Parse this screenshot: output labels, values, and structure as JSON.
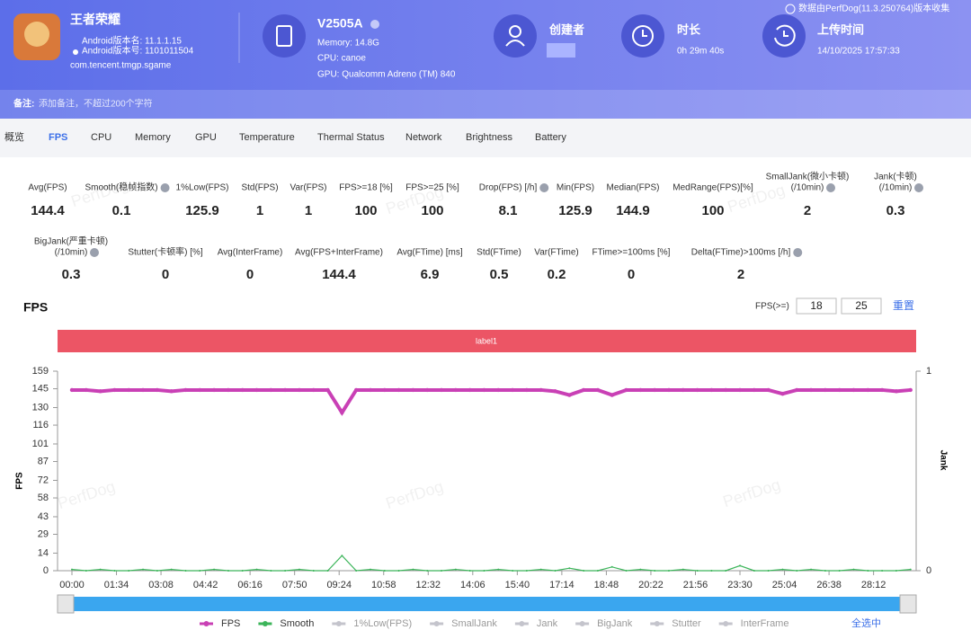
{
  "header": {
    "app": {
      "name": "王者荣耀",
      "version_name": "Android版本名: 11.1.1.15",
      "version_code": "Android版本号: 1101011504",
      "package": "com.tencent.tmgp.sgame"
    },
    "device": {
      "name": "V2505A",
      "memory": "Memory: 14.8G",
      "cpu": "CPU: canoe",
      "gpu": "GPU: Qualcomm Adreno (TM) 840"
    },
    "creator": {
      "label": "创建者"
    },
    "duration": {
      "label": "时长",
      "value": "0h 29m 40s"
    },
    "upload": {
      "label": "上传时间",
      "value": "14/10/2025 17:57:33"
    },
    "source": "数据由PerfDog(11.3.250764)版本收集"
  },
  "note": {
    "label": "备注:",
    "placeholder": "添加备注，不超过200个字符"
  },
  "tabs": [
    "概览",
    "FPS",
    "CPU",
    "Memory",
    "GPU",
    "Temperature",
    "Thermal Status",
    "Network",
    "Brightness",
    "Battery"
  ],
  "active_tab": 1,
  "stats": [
    [
      {
        "label": "Avg(FPS)",
        "value": 144.4
      },
      {
        "label": "Smooth(稳帧指数)",
        "value": 0.1,
        "help": true
      },
      {
        "label": "1%Low(FPS)",
        "value": 125.9
      },
      {
        "label": "Std(FPS)",
        "value": 1
      },
      {
        "label": "Var(FPS)",
        "value": 1
      },
      {
        "label": "FPS>=18 [%]",
        "value": 100
      },
      {
        "label": "FPS>=25 [%]",
        "value": 100
      },
      {
        "label": "Drop(FPS) [/h]",
        "value": 8.1,
        "help": true
      },
      {
        "label": "Min(FPS)",
        "value": 125.9
      },
      {
        "label": "Median(FPS)",
        "value": 144.9
      },
      {
        "label": "MedRange(FPS)[%]",
        "value": 100
      },
      {
        "label": "SmallJank(微小卡顿)",
        "label2": "(/10min)",
        "value": 2,
        "help": true
      },
      {
        "label": "Jank(卡顿)",
        "label2": "(/10min)",
        "value": 0.3,
        "help": true
      }
    ],
    [
      {
        "label": "BigJank(严重卡顿)",
        "label2": "(/10min)",
        "value": 0.3,
        "help": true
      },
      {
        "label": "Stutter(卡顿率) [%]",
        "value": 0
      },
      {
        "label": "Avg(InterFrame)",
        "value": 0
      },
      {
        "label": "Avg(FPS+InterFrame)",
        "value": 144.4
      },
      {
        "label": "Avg(FTime) [ms]",
        "value": 6.9
      },
      {
        "label": "Std(FTime)",
        "value": 0.5
      },
      {
        "label": "Var(FTime)",
        "value": 0.2
      },
      {
        "label": "FTime>=100ms [%]",
        "value": 0
      },
      {
        "label": "Delta(FTime)>100ms [/h]",
        "value": 2,
        "help": true
      }
    ]
  ],
  "watermark": "PerfDog",
  "chart_data": {
    "type": "line",
    "title": "FPS",
    "threshold_label": "FPS(>=)",
    "thresholds": [
      18,
      25
    ],
    "reset": "重置",
    "band_label": "label1",
    "band_color": "#ec5565",
    "y_label": "FPS",
    "y2_label": "Jank",
    "ylim": [
      0,
      159
    ],
    "yticks": [
      0,
      14,
      29,
      43,
      58,
      72,
      87,
      101,
      116,
      130,
      145,
      159
    ],
    "y2lim": [
      0,
      1
    ],
    "y2ticks": [
      0,
      1
    ],
    "xlim": [
      0,
      1780
    ],
    "xticks": [
      {
        "value": 0,
        "label": "00:00"
      },
      {
        "value": 94,
        "label": "01:34"
      },
      {
        "value": 188,
        "label": "03:08"
      },
      {
        "value": 282,
        "label": "04:42"
      },
      {
        "value": 376,
        "label": "06:16"
      },
      {
        "value": 470,
        "label": "07:50"
      },
      {
        "value": 564,
        "label": "09:24"
      },
      {
        "value": 658,
        "label": "10:58"
      },
      {
        "value": 752,
        "label": "12:32"
      },
      {
        "value": 846,
        "label": "14:06"
      },
      {
        "value": 940,
        "label": "15:40"
      },
      {
        "value": 1034,
        "label": "17:14"
      },
      {
        "value": 1128,
        "label": "18:48"
      },
      {
        "value": 1222,
        "label": "20:22"
      },
      {
        "value": 1316,
        "label": "21:56"
      },
      {
        "value": 1410,
        "label": "23:30"
      },
      {
        "value": 1504,
        "label": "25:04"
      },
      {
        "value": 1598,
        "label": "26:38"
      },
      {
        "value": 1692,
        "label": "28:12"
      }
    ],
    "x": [
      0,
      30,
      60,
      90,
      120,
      150,
      180,
      210,
      240,
      270,
      300,
      330,
      360,
      390,
      420,
      450,
      480,
      510,
      540,
      570,
      600,
      630,
      660,
      690,
      720,
      750,
      780,
      810,
      840,
      870,
      900,
      930,
      960,
      990,
      1020,
      1050,
      1080,
      1110,
      1140,
      1170,
      1200,
      1230,
      1260,
      1290,
      1320,
      1350,
      1380,
      1410,
      1440,
      1470,
      1500,
      1530,
      1560,
      1590,
      1620,
      1650,
      1680,
      1710,
      1740,
      1770
    ],
    "series": [
      {
        "name": "FPS",
        "color": "#c940b5",
        "values": [
          144,
          144,
          143,
          144,
          144,
          144,
          144,
          143,
          144,
          144,
          144,
          144,
          144,
          144,
          144,
          144,
          144,
          144,
          144,
          126,
          144,
          144,
          144,
          144,
          144,
          144,
          144,
          144,
          144,
          144,
          144,
          144,
          144,
          144,
          143,
          140,
          144,
          144,
          140,
          144,
          144,
          144,
          144,
          144,
          144,
          144,
          144,
          144,
          144,
          144,
          141,
          144,
          144,
          144,
          144,
          144,
          144,
          144,
          143,
          144
        ]
      },
      {
        "name": "Smooth",
        "color": "#3cb55a",
        "values": [
          1,
          0,
          1,
          0,
          0,
          1,
          0,
          1,
          0,
          0,
          1,
          0,
          0,
          1,
          0,
          0,
          1,
          0,
          0,
          12,
          0,
          1,
          0,
          0,
          1,
          0,
          0,
          1,
          0,
          0,
          1,
          0,
          0,
          1,
          0,
          2,
          0,
          0,
          3,
          0,
          1,
          0,
          0,
          1,
          0,
          0,
          0,
          4,
          0,
          0,
          1,
          0,
          1,
          0,
          0,
          1,
          0,
          0,
          0,
          1
        ]
      }
    ],
    "legend_off": [
      "1%Low(FPS)",
      "SmallJank",
      "Jank",
      "BigJank",
      "Stutter",
      "InterFrame"
    ],
    "legend_off_color": "#c4c4cc",
    "select_all": "全选中"
  }
}
